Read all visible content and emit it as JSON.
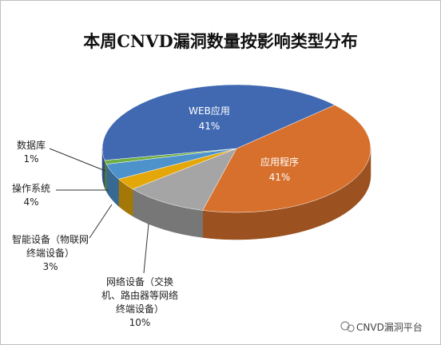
{
  "chart_data": {
    "type": "pie3d",
    "title": "本周CNVD漏洞数量按影响类型分布",
    "categories": [
      "应用程序",
      "网络设备（交换机、路由器等网络终端设备）",
      "智能设备（物联网终端设备）",
      "操作系统",
      "数据库",
      "WEB应用"
    ],
    "values": [
      41,
      10,
      3,
      4,
      1,
      41
    ],
    "value_labels": [
      "41%",
      "10%",
      "3%",
      "4%",
      "1%",
      "41%"
    ],
    "colors": [
      "#d7702c",
      "#a5a5a5",
      "#e3a70a",
      "#4e92cc",
      "#6fae45",
      "#4169b2"
    ]
  },
  "watermark": "CNVD漏洞平台"
}
